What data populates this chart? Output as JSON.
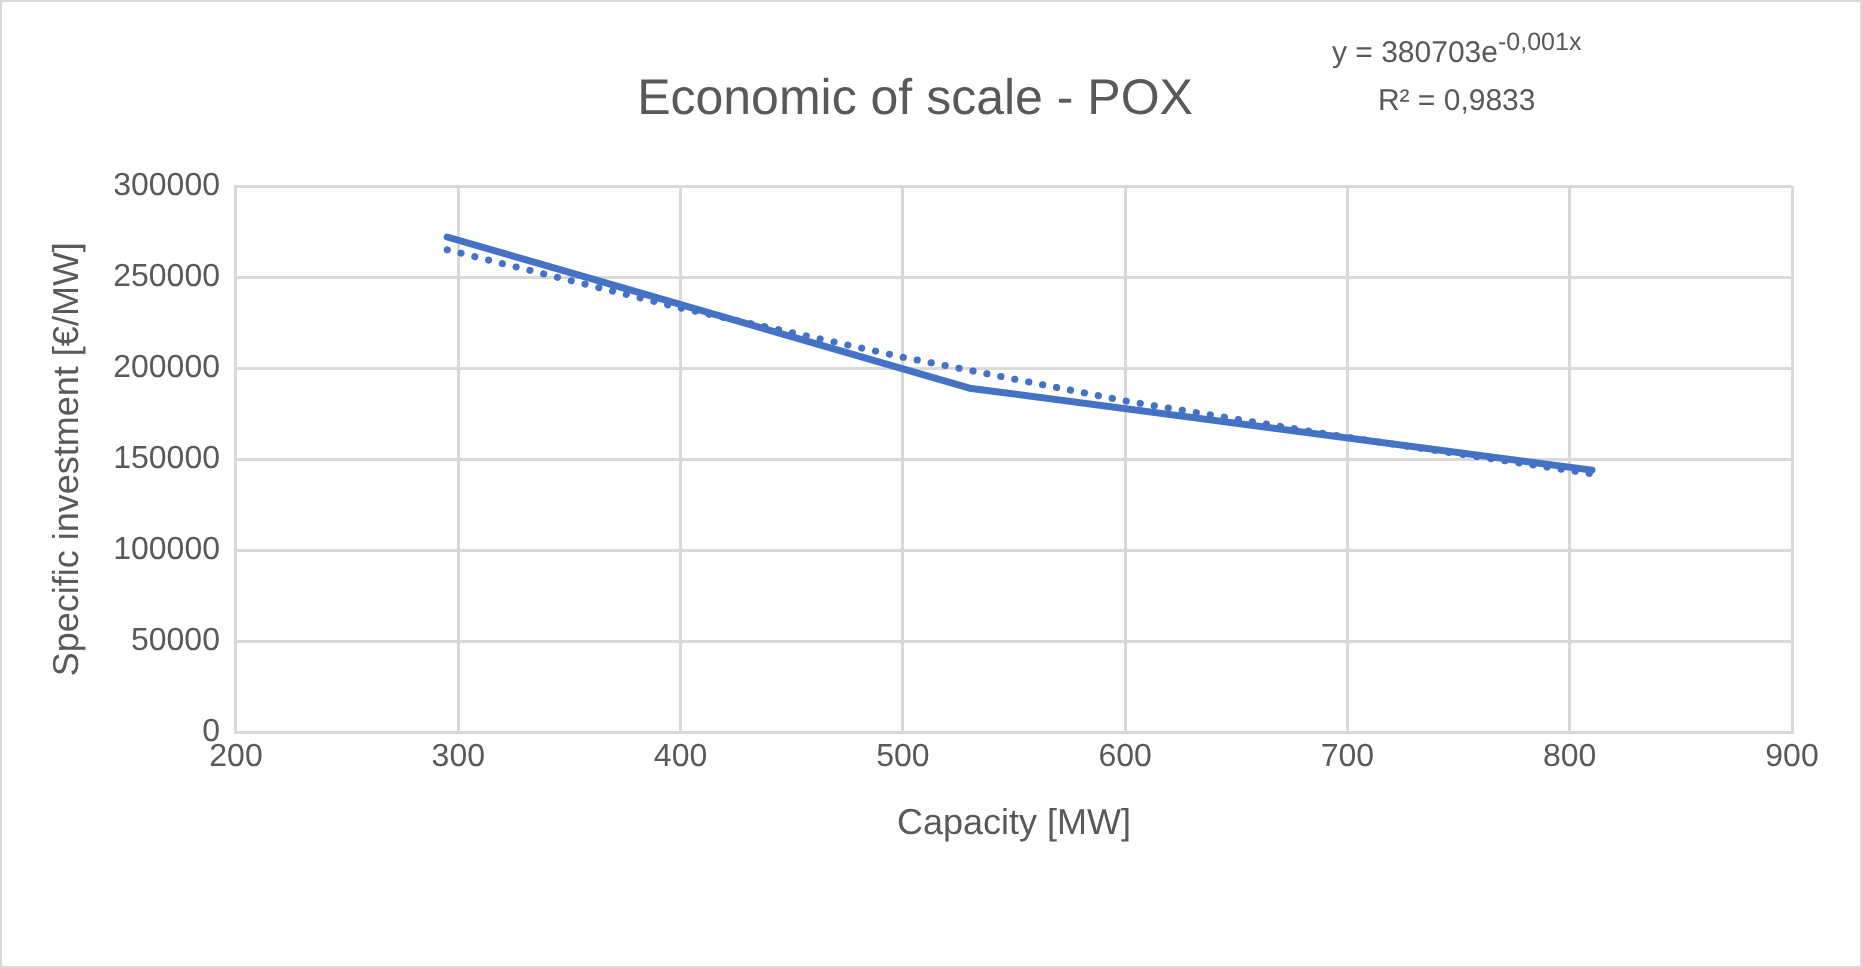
{
  "chart_data": {
    "type": "line",
    "title": "Economic of scale - POX",
    "xlabel": "Capacity [MW]",
    "ylabel": "Specific investment [€/MW]",
    "annotations": [
      "y = 380703e$^{-0,001x}$",
      "R² = 0,9833"
    ],
    "series": [
      {
        "x": [
          295,
          530,
          810
        ],
        "values": [
          272000,
          189000,
          144000
        ],
        "color": "#4472c4",
        "line_style": "solid"
      },
      {
        "x": [
          295,
          400,
          500,
          600,
          700,
          810
        ],
        "values": [
          265000,
          233000,
          206000,
          182000,
          162000,
          142000
        ],
        "color": "#4472c4",
        "line_style": "dotted"
      }
    ],
    "xlim": [
      200,
      900
    ],
    "xticks": [
      200,
      300,
      400,
      500,
      600,
      700,
      800,
      900
    ],
    "ylim": [
      0,
      300000
    ],
    "yticks": [
      0,
      50000,
      100000,
      150000,
      200000,
      250000,
      300000
    ],
    "grid": true,
    "marker": "none"
  }
}
